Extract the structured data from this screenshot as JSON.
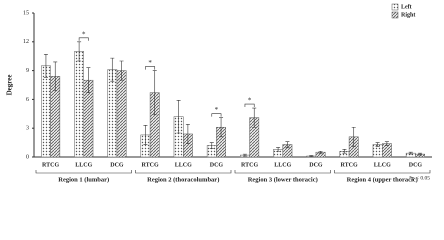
{
  "chart_data": {
    "type": "bar",
    "y_label": "Degree",
    "categories": [
      "RTCG",
      "LLCG",
      "DCG",
      "RTCG",
      "LLCG",
      "DCG",
      "RTCG",
      "LLCG",
      "DCG",
      "RTCG",
      "LLCG",
      "DCG"
    ],
    "groups": [
      {
        "label": "Region 1 (lumbar)",
        "span": [
          0,
          2
        ]
      },
      {
        "label": "Region 2 (thoracolumbar)",
        "span": [
          3,
          5
        ]
      },
      {
        "label": "Region 3 (lower thoracic)",
        "span": [
          6,
          8
        ]
      },
      {
        "label": "Region 4 (upper thoracic)",
        "span": [
          9,
          11
        ]
      }
    ],
    "series": [
      {
        "name": "Left",
        "color": "#555555",
        "pattern": "dots",
        "values": [
          9.5,
          11.0,
          9.1,
          2.3,
          4.2,
          1.2,
          0.2,
          0.8,
          0.1,
          0.6,
          1.3,
          0.4
        ],
        "errors": [
          1.2,
          1.0,
          1.2,
          1.0,
          1.7,
          0.3,
          0.1,
          0.2,
          0.05,
          0.2,
          0.2,
          0.1
        ]
      },
      {
        "name": "Right",
        "color": "#555555",
        "pattern": "hatch",
        "values": [
          8.4,
          8.0,
          9.0,
          6.7,
          2.4,
          3.1,
          4.1,
          1.3,
          0.5,
          2.1,
          1.4,
          0.3
        ],
        "errors": [
          1.5,
          1.3,
          1.0,
          2.3,
          1.0,
          1.0,
          1.0,
          0.3,
          0.1,
          1.0,
          0.2,
          0.1
        ]
      }
    ],
    "significance": [
      {
        "category": 1,
        "label": "*"
      },
      {
        "category": 3,
        "label": "*"
      },
      {
        "category": 5,
        "label": "*"
      },
      {
        "category": 6,
        "label": "*"
      }
    ],
    "note": "*p < 0.05",
    "ylim": [
      0,
      15
    ],
    "yticks": [
      0,
      3,
      6,
      9,
      12,
      15
    ],
    "legend": "upper right"
  }
}
